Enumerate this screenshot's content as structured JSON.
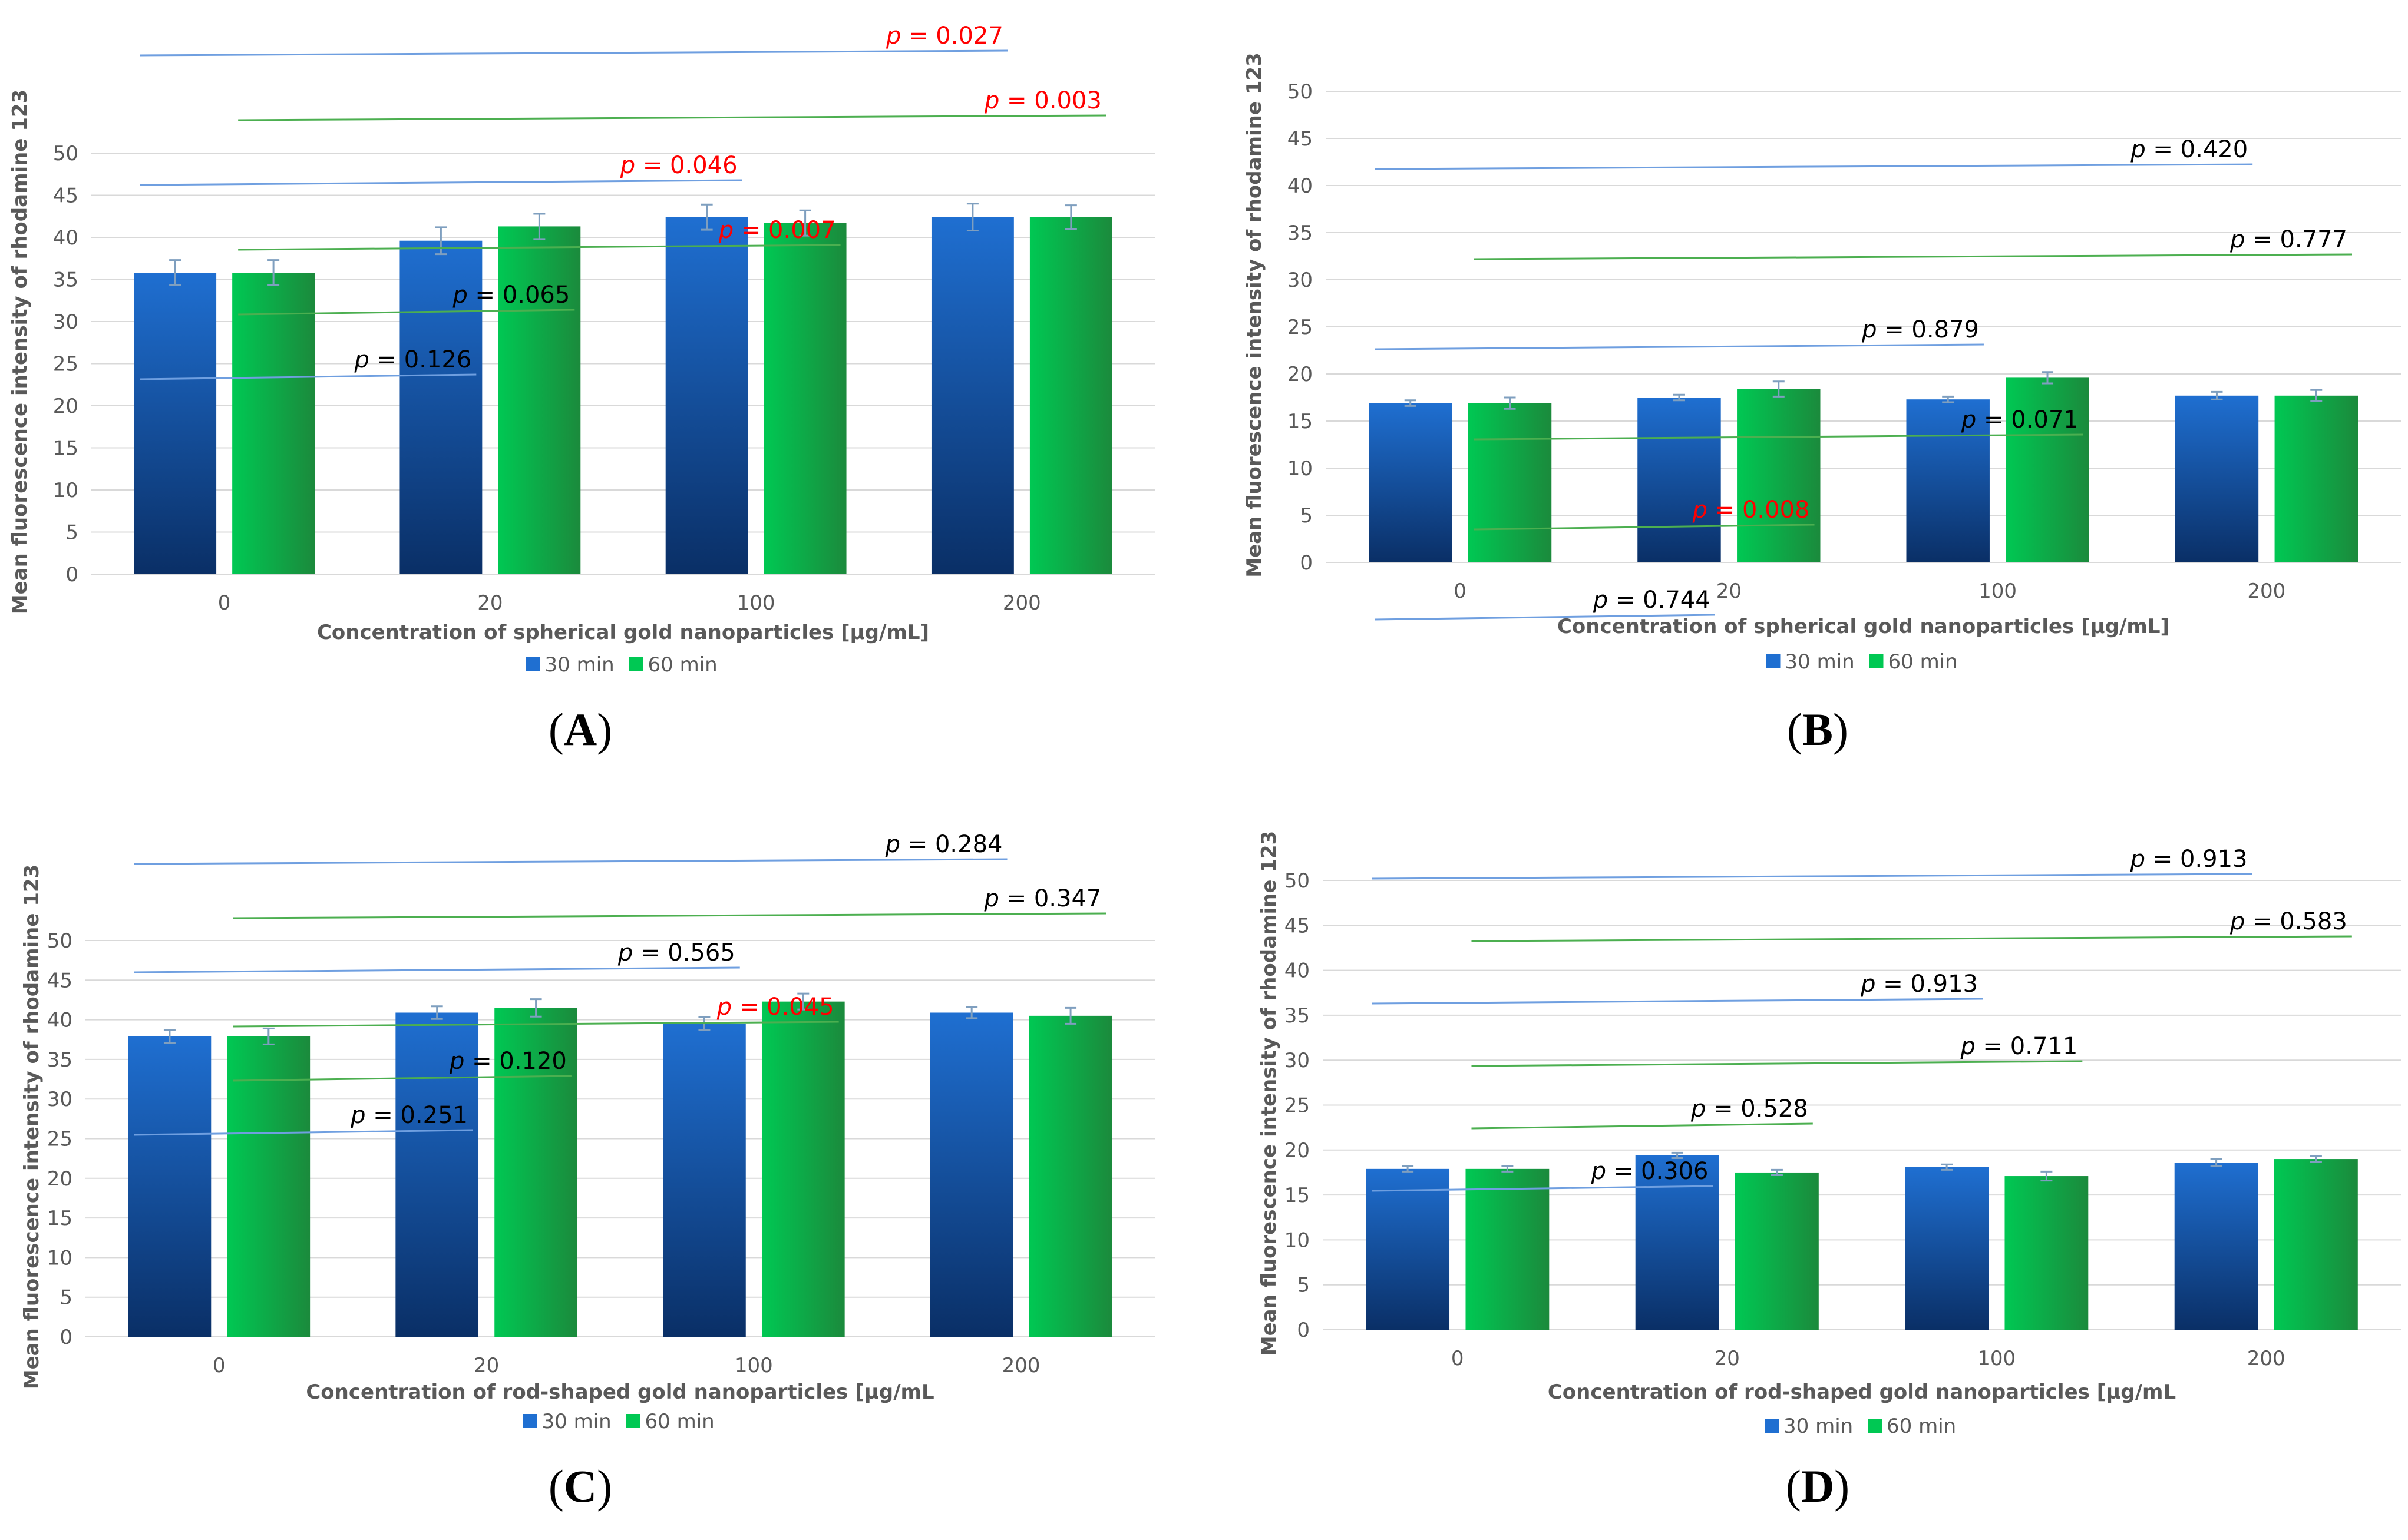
{
  "colors": {
    "series_30_top": "#1f6fd1",
    "series_30_bottom": "#0a2f66",
    "series_60_top": "#00c853",
    "series_60_bottom": "#1b8a3c",
    "grid": "#d9d9d9",
    "axis_text": "#595959",
    "bracket_blue": "#6f9fe0",
    "bracket_green": "#4caf50",
    "significant": "#ff0000",
    "errorbar": "#7f9fbf"
  },
  "chart_data": [
    {
      "panel": "A",
      "label": "A",
      "type": "bar",
      "categories": [
        "0",
        "20",
        "100",
        "200"
      ],
      "xlabel": "Concentration of spherical gold nanoparticles [µg/mL]",
      "ylabel": "Mean fluorescence intensity of rhodamine 123",
      "ylim": [
        0,
        50
      ],
      "yticks": [
        "0",
        "5",
        "10",
        "15",
        "20",
        "25",
        "30",
        "35",
        "40",
        "45",
        "50"
      ],
      "series": [
        {
          "name": "30 min",
          "values": [
            35.8,
            39.6,
            42.4,
            42.4
          ],
          "errors": [
            1.5,
            1.6,
            1.5,
            1.6
          ]
        },
        {
          "name": "60 min",
          "values": [
            35.8,
            41.3,
            41.7,
            42.4
          ],
          "errors": [
            1.5,
            1.5,
            1.5,
            1.4
          ]
        }
      ],
      "brackets": [
        {
          "series": "30 min",
          "from": "0",
          "to": "200",
          "text": "p = 0.027",
          "significant": true
        },
        {
          "series": "60 min",
          "from": "0",
          "to": "200",
          "text": "p = 0.003",
          "significant": true
        },
        {
          "series": "30 min",
          "from": "0",
          "to": "100",
          "text": "p = 0.046",
          "significant": true
        },
        {
          "series": "60 min",
          "from": "0",
          "to": "100",
          "text": "p = 0.007",
          "significant": true
        },
        {
          "series": "60 min",
          "from": "0",
          "to": "20",
          "text": "p = 0.065",
          "significant": false
        },
        {
          "series": "30 min",
          "from": "0",
          "to": "20",
          "text": "p = 0.126",
          "significant": false
        }
      ],
      "legend": [
        "30 min",
        "60 min"
      ]
    },
    {
      "panel": "B",
      "label": "B",
      "type": "bar",
      "categories": [
        "0",
        "20",
        "100",
        "200"
      ],
      "xlabel": "Concentration of spherical gold nanoparticles [µg/mL]",
      "ylabel": "Mean fluorescence intensity of rhodamine 123",
      "ylim": [
        0,
        50
      ],
      "yticks": [
        "0",
        "5",
        "10",
        "15",
        "20",
        "25",
        "30",
        "35",
        "40",
        "45",
        "50"
      ],
      "series": [
        {
          "name": "30 min",
          "values": [
            16.9,
            17.5,
            17.3,
            17.7
          ],
          "errors": [
            0.3,
            0.3,
            0.3,
            0.4
          ]
        },
        {
          "name": "60 min",
          "values": [
            16.9,
            18.4,
            19.6,
            17.7
          ],
          "errors": [
            0.6,
            0.8,
            0.6,
            0.6
          ]
        }
      ],
      "brackets": [
        {
          "series": "30 min",
          "from": "0",
          "to": "200",
          "text": "p = 0.420",
          "significant": false
        },
        {
          "series": "60 min",
          "from": "0",
          "to": "200",
          "text": "p = 0.777",
          "significant": false
        },
        {
          "series": "30 min",
          "from": "0",
          "to": "100",
          "text": "p = 0.879",
          "significant": false
        },
        {
          "series": "60 min",
          "from": "0",
          "to": "100",
          "text": "p = 0.071",
          "significant": false
        },
        {
          "series": "60 min",
          "from": "0",
          "to": "20",
          "text": "p = 0.008",
          "significant": true
        },
        {
          "series": "30 min",
          "from": "0",
          "to": "20",
          "text": "p = 0.744",
          "significant": false
        }
      ],
      "legend": [
        "30 min",
        "60 min"
      ]
    },
    {
      "panel": "C",
      "label": "C",
      "type": "bar",
      "categories": [
        "0",
        "20",
        "100",
        "200"
      ],
      "xlabel": "Concentration of rod-shaped gold nanoparticles [µg/mL",
      "ylabel": "Mean fluorescence intensity of rhodamine 123",
      "ylim": [
        0,
        50
      ],
      "yticks": [
        "0",
        "5",
        "10",
        "15",
        "20",
        "25",
        "30",
        "35",
        "40",
        "45",
        "50"
      ],
      "series": [
        {
          "name": "30 min",
          "values": [
            37.9,
            40.9,
            39.5,
            40.9
          ],
          "errors": [
            0.8,
            0.8,
            0.8,
            0.7
          ]
        },
        {
          "name": "60 min",
          "values": [
            37.9,
            41.5,
            42.3,
            40.5
          ],
          "errors": [
            1.0,
            1.1,
            1.0,
            1.0
          ]
        }
      ],
      "brackets": [
        {
          "series": "30 min",
          "from": "0",
          "to": "200",
          "text": "p = 0.284",
          "significant": false
        },
        {
          "series": "60 min",
          "from": "0",
          "to": "200",
          "text": "p = 0.347",
          "significant": false
        },
        {
          "series": "30 min",
          "from": "0",
          "to": "100",
          "text": "p = 0.565",
          "significant": false
        },
        {
          "series": "60 min",
          "from": "0",
          "to": "100",
          "text": "p = 0.045",
          "significant": true
        },
        {
          "series": "60 min",
          "from": "0",
          "to": "20",
          "text": "p = 0.120",
          "significant": false
        },
        {
          "series": "30 min",
          "from": "0",
          "to": "20",
          "text": "p = 0.251",
          "significant": false
        }
      ],
      "legend": [
        "30 min",
        "60 min"
      ]
    },
    {
      "panel": "D",
      "label": "D",
      "type": "bar",
      "categories": [
        "0",
        "20",
        "100",
        "200"
      ],
      "xlabel": "Concentration of rod-shaped gold nanoparticles [µg/mL",
      "ylabel": "Mean fluorescence intensity of rhodamine 123",
      "ylim": [
        0,
        50
      ],
      "yticks": [
        "0",
        "5",
        "10",
        "15",
        "20",
        "25",
        "30",
        "35",
        "40",
        "45",
        "50"
      ],
      "series": [
        {
          "name": "30 min",
          "values": [
            17.9,
            19.4,
            18.1,
            18.6
          ],
          "errors": [
            0.3,
            0.3,
            0.3,
            0.4
          ]
        },
        {
          "name": "60 min",
          "values": [
            17.9,
            17.5,
            17.1,
            19.0
          ],
          "errors": [
            0.3,
            0.3,
            0.5,
            0.3
          ]
        }
      ],
      "brackets": [
        {
          "series": "30 min",
          "from": "0",
          "to": "200",
          "text": "p = 0.913",
          "significant": false
        },
        {
          "series": "60 min",
          "from": "0",
          "to": "200",
          "text": "p = 0.583",
          "significant": false
        },
        {
          "series": "30 min",
          "from": "0",
          "to": "100",
          "text": "p = 0.913",
          "significant": false
        },
        {
          "series": "60 min",
          "from": "0",
          "to": "100",
          "text": "p = 0.711",
          "significant": false
        },
        {
          "series": "60 min",
          "from": "0",
          "to": "20",
          "text": "p = 0.528",
          "significant": false
        },
        {
          "series": "30 min",
          "from": "0",
          "to": "20",
          "text": "p = 0.306",
          "significant": false
        }
      ],
      "legend": [
        "30 min",
        "60 min"
      ]
    }
  ]
}
